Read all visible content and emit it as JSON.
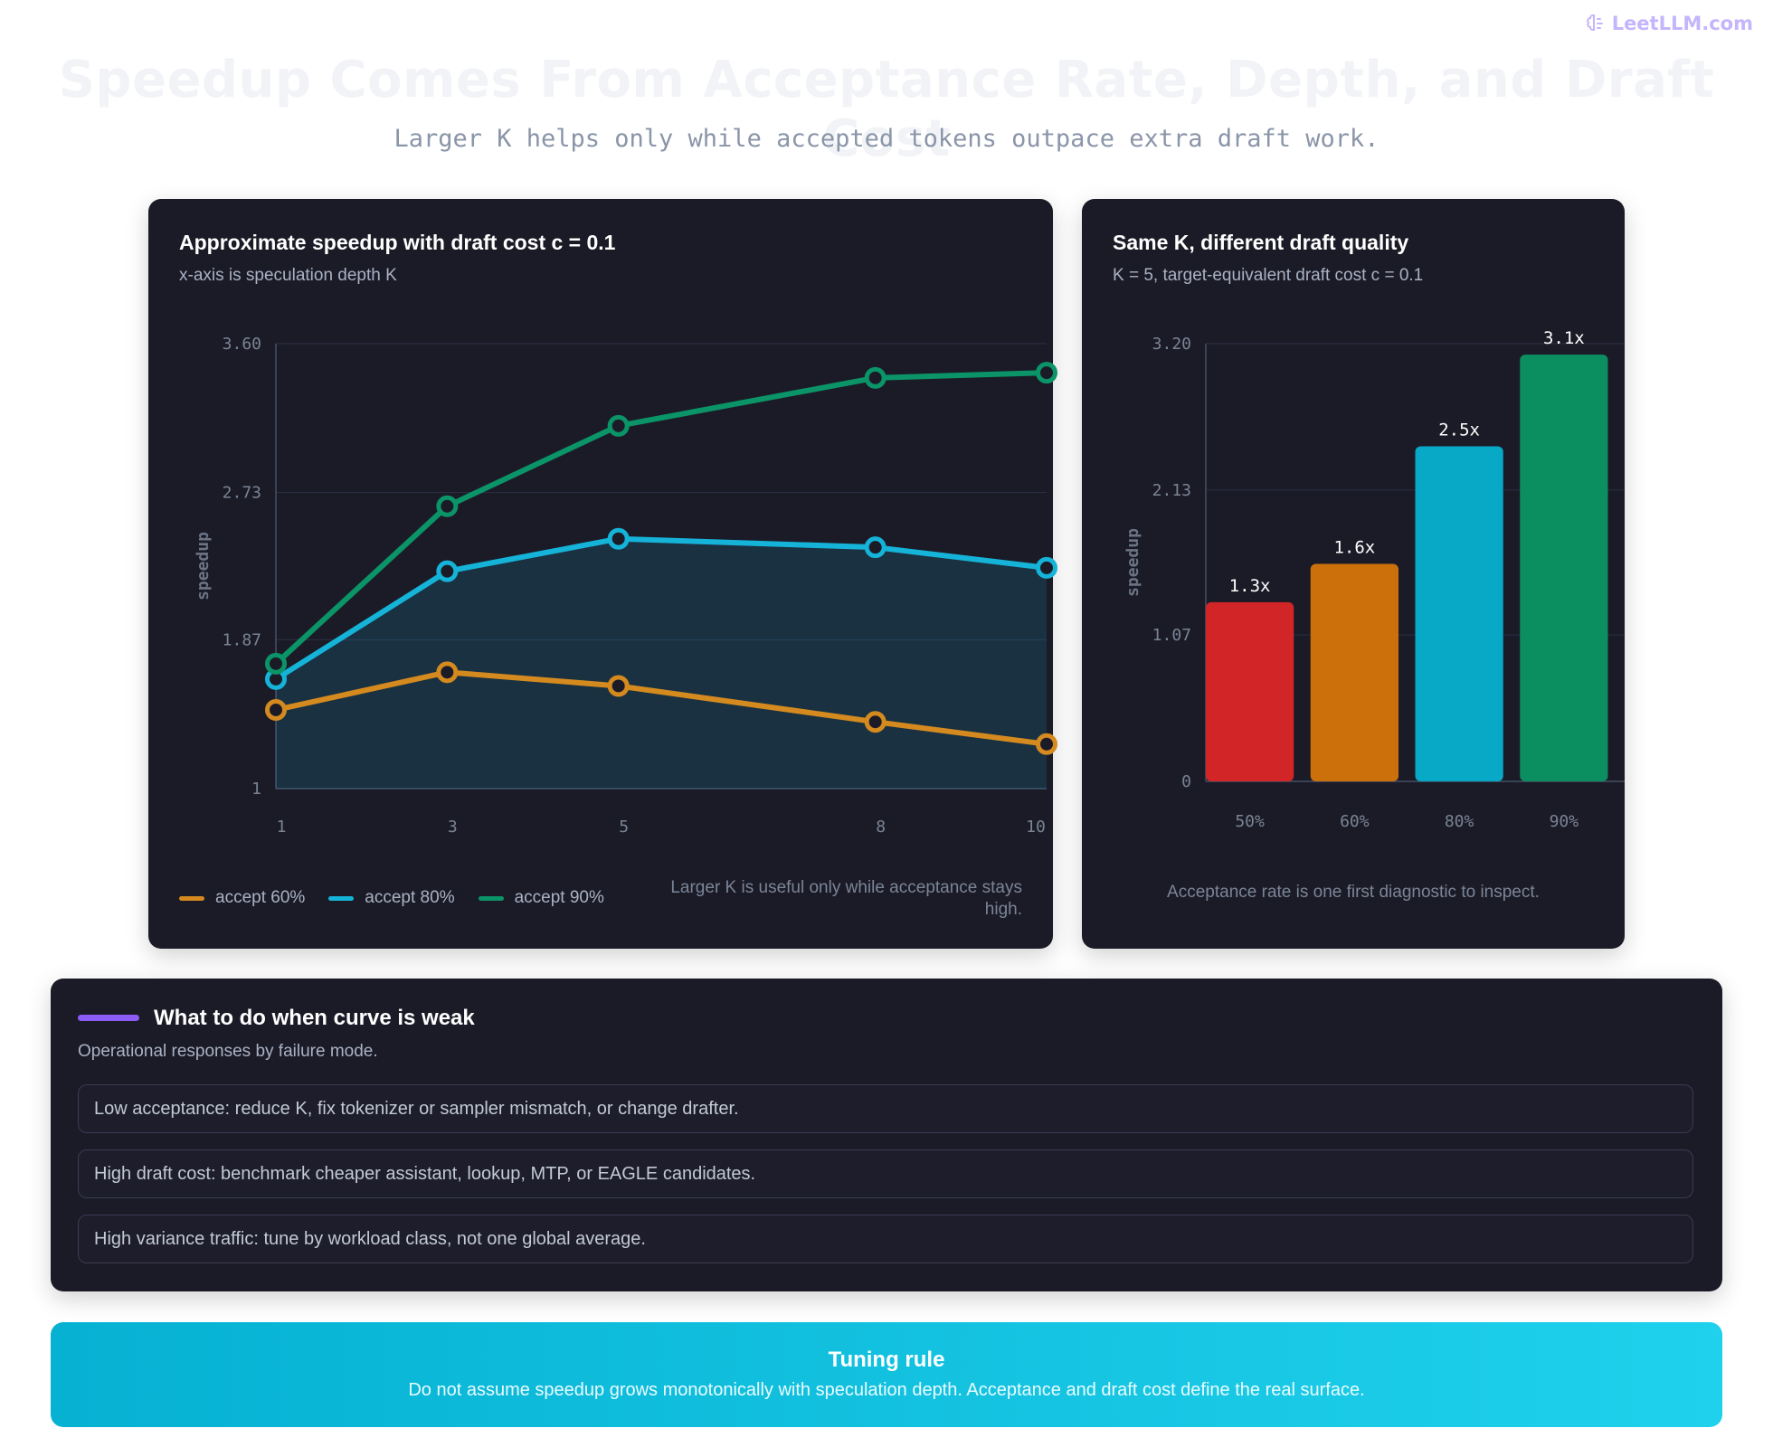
{
  "brand": {
    "name": "LeetLLM.com",
    "icon": "brain-icon"
  },
  "header": {
    "title": "Speedup Comes From Acceptance Rate, Depth, and Draft Cost",
    "subtitle": "Larger K helps only while accepted tokens outpace extra draft work."
  },
  "line_card": {
    "title": "Approximate speedup with draft cost c = 0.1",
    "subtitle": "x-axis is speculation depth K",
    "note": "Larger K is useful only while acceptance stays high."
  },
  "bar_card": {
    "title": "Same K, different draft quality",
    "subtitle": "K = 5, target-equivalent draft cost c = 0.1",
    "note": "Acceptance rate is one first diagnostic to inspect."
  },
  "chart_data": [
    {
      "type": "line",
      "ylabel": "speedup",
      "x": [
        1,
        3,
        5,
        8,
        10
      ],
      "x_tick_labels": [
        "1",
        "3",
        "5",
        "8",
        "10"
      ],
      "y_ticks": [
        "1",
        "1.87",
        "2.73",
        "3.60"
      ],
      "ylim": [
        1,
        3.6
      ],
      "grid": true,
      "legend_position": "bottom-left",
      "series": [
        {
          "name": "accept 60%",
          "color": "#d48a1e",
          "values": [
            1.46,
            1.68,
            1.6,
            1.39,
            1.26
          ]
        },
        {
          "name": "accept 80%",
          "color": "#15b3d8",
          "values": [
            1.64,
            2.27,
            2.46,
            2.41,
            2.29
          ],
          "area": true
        },
        {
          "name": "accept 90%",
          "color": "#0b9467",
          "values": [
            1.73,
            2.65,
            3.12,
            3.4,
            3.43
          ]
        }
      ]
    },
    {
      "type": "bar",
      "ylabel": "speedup",
      "categories": [
        "50%",
        "60%",
        "80%",
        "90%"
      ],
      "values": [
        1.31,
        1.59,
        2.45,
        3.12
      ],
      "data_labels": [
        "1.3x",
        "1.6x",
        "2.5x",
        "3.1x"
      ],
      "colors": [
        "#d22528",
        "#cc700b",
        "#08a8c7",
        "#0b8f61"
      ],
      "y_ticks": [
        "0",
        "1.07",
        "2.13",
        "3.20"
      ],
      "ylim": [
        0,
        3.2
      ],
      "grid": true
    }
  ],
  "weak_section": {
    "title": "What to do when curve is weak",
    "subtitle": "Operational responses by failure mode.",
    "accent_color": "#8b5cf6",
    "items": [
      "Low acceptance: reduce K, fix tokenizer or sampler mismatch, or change drafter.",
      "High draft cost: benchmark cheaper assistant, lookup, MTP, or EAGLE candidates.",
      "High variance traffic: tune by workload class, not one global average."
    ]
  },
  "tuning_rule": {
    "title": "Tuning rule",
    "text": "Do not assume speedup grows monotonically with speculation depth. Acceptance and draft cost define the real surface."
  }
}
